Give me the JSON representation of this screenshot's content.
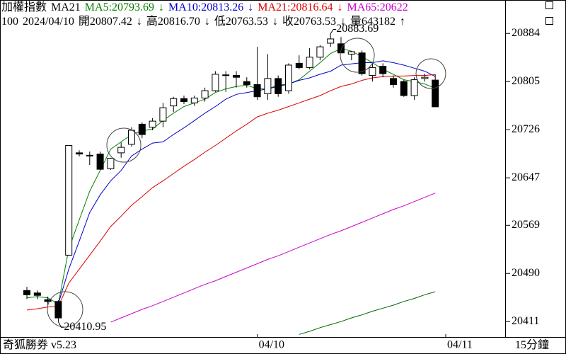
{
  "chart_data": {
    "type": "candlestick",
    "header": [
      {
        "text": "加權指數",
        "color": "#000000"
      },
      {
        "text": "MA21",
        "color": "#000000"
      },
      {
        "text": "MA5:20793.69",
        "color": "#008000"
      },
      {
        "text": "↓",
        "color": "#008000"
      },
      {
        "text": "MA10:20813.26",
        "color": "#0000cc"
      },
      {
        "text": "↓",
        "color": "#0000cc"
      },
      {
        "text": "MA21:20816.64",
        "color": "#dd0000"
      },
      {
        "text": "↓",
        "color": "#dd0000"
      },
      {
        "text": "MA65:20622",
        "color": "#cc00cc"
      }
    ],
    "quote_line": [
      "100",
      "2024/04/10",
      "開20807.42",
      "↓",
      "高20816.70",
      "↓",
      "低20763.53",
      "↓",
      "收20763.53",
      "↓",
      "量643182",
      "↑"
    ],
    "footer_left": "奇狐勝券 v5.23",
    "footer_right": "15分鐘",
    "up_fill": "#ffffff",
    "down_fill": "#000000",
    "candle_stroke": "#000000",
    "open": [
      20462,
      20458,
      20447,
      20444,
      20520,
      20688,
      20683,
      20686,
      20662,
      20688,
      20702,
      20735,
      20730,
      20740,
      20765,
      20777,
      20770,
      20778,
      20790,
      20816,
      20815,
      20805,
      20800,
      20785,
      20810,
      20790,
      20835,
      20828,
      20845,
      20868,
      20867,
      20850,
      20852,
      20815,
      20830,
      20810,
      20805,
      20782,
      20810,
      20807.42
    ],
    "high": [
      20468,
      20462,
      20452,
      20446,
      20700,
      20692,
      20690,
      20690,
      20680,
      20705,
      20730,
      20738,
      20745,
      20770,
      20780,
      20782,
      20782,
      20795,
      20822,
      20822,
      20822,
      20812,
      20862,
      20850,
      20815,
      20835,
      20848,
      20860,
      20865,
      20883.69,
      20878,
      20855,
      20856,
      20835,
      20835,
      20815,
      20808,
      20812,
      20818,
      20816.7
    ],
    "low": [
      20448,
      20448,
      20438,
      20410.95,
      20519,
      20682,
      20668,
      20660,
      20660,
      20680,
      20698,
      20712,
      20725,
      20730,
      20755,
      20768,
      20765,
      20772,
      20788,
      20788,
      20795,
      20795,
      20775,
      20775,
      20780,
      20785,
      20825,
      20825,
      20840,
      20862,
      20855,
      20840,
      20815,
      20805,
      20812,
      20795,
      20780,
      20775,
      20805,
      20763.53
    ],
    "close": [
      20455,
      20454,
      20444,
      20417,
      20700,
      20686,
      20684,
      20661,
      20679,
      20697,
      20725,
      20718,
      20740,
      20762,
      20777,
      20772,
      20778,
      20790,
      20817,
      20815,
      20812,
      20800,
      20780,
      20810,
      20785,
      20832,
      20828,
      20845,
      20862,
      20875,
      20852,
      20854,
      20818,
      20828,
      20818,
      20800,
      20782,
      20808,
      20812,
      20763.53
    ],
    "series": [
      {
        "name": "MA5",
        "color": "#008000",
        "values": [
          20450,
          20452,
          20450,
          20440,
          20530,
          20578,
          20625,
          20659,
          20694,
          20706,
          20718,
          20724,
          20727,
          20741,
          20753,
          20764,
          20770,
          20776,
          20787,
          20793,
          20797,
          20799,
          20793,
          20793,
          20799,
          20801,
          20808,
          20822,
          20836,
          20851,
          20859,
          20855,
          20846,
          20836,
          20825,
          20817,
          20808,
          20805,
          20801,
          20793.69
        ]
      },
      {
        "name": "MA10",
        "color": "#0000cc",
        "values": [
          null,
          null,
          null,
          20440,
          20497,
          20543,
          20590,
          20619,
          20642,
          20659,
          20683,
          20694,
          20704,
          20706,
          20718,
          20729,
          20741,
          20753,
          20764,
          20776,
          20784,
          20787,
          20790,
          20793,
          20797,
          20801,
          20807,
          20811,
          20817,
          20822,
          20832,
          20834,
          20836,
          20836,
          20839,
          20836,
          20832,
          20827,
          20822,
          20813.26
        ]
      },
      {
        "name": "MA21",
        "color": "#dd0000",
        "values": [
          20430,
          20432,
          20435,
          20436,
          20474,
          20497,
          20520,
          20543,
          20567,
          20584,
          20602,
          20616,
          20631,
          20642,
          20654,
          20666,
          20677,
          20689,
          20700,
          20712,
          20724,
          20735,
          20747,
          20753,
          20758,
          20764,
          20770,
          20776,
          20782,
          20790,
          20797,
          20801,
          20807,
          20811,
          20813,
          20814,
          20814,
          20815,
          20815,
          20816.64
        ]
      },
      {
        "name": "MA65",
        "color": "#cc00cc",
        "values": [
          null,
          null,
          null,
          null,
          null,
          null,
          null,
          null,
          20410,
          20417,
          20424,
          20431,
          20437,
          20444,
          20451,
          20458,
          20465,
          20472,
          20478,
          20485,
          20492,
          20499,
          20506,
          20513,
          20519,
          20526,
          20533,
          20540,
          20547,
          20554,
          20560,
          20567,
          20574,
          20581,
          20588,
          20595,
          20601,
          20608,
          20615,
          20622
        ]
      },
      {
        "color": "#006400",
        "values": [
          null,
          null,
          null,
          null,
          null,
          null,
          null,
          null,
          null,
          null,
          null,
          null,
          null,
          null,
          null,
          null,
          null,
          null,
          null,
          null,
          null,
          null,
          null,
          null,
          null,
          null,
          20390,
          20395,
          20401,
          20406,
          20411,
          20417,
          20422,
          20428,
          20433,
          20438,
          20444,
          20449,
          20455,
          20460
        ]
      }
    ],
    "annotations": [
      {
        "text": "20883.69",
        "index": 29,
        "value": 20883.69
      },
      {
        "text": "20410.95",
        "index": 3,
        "value": 20410.95
      }
    ],
    "ylim": [
      20388,
      20904
    ],
    "yticks": [
      20884,
      20805,
      20726,
      20647,
      20569,
      20490,
      20411
    ],
    "xticks": [
      {
        "value": 22,
        "label": "04/10"
      },
      {
        "value": 40,
        "label": "04/11"
      }
    ]
  }
}
